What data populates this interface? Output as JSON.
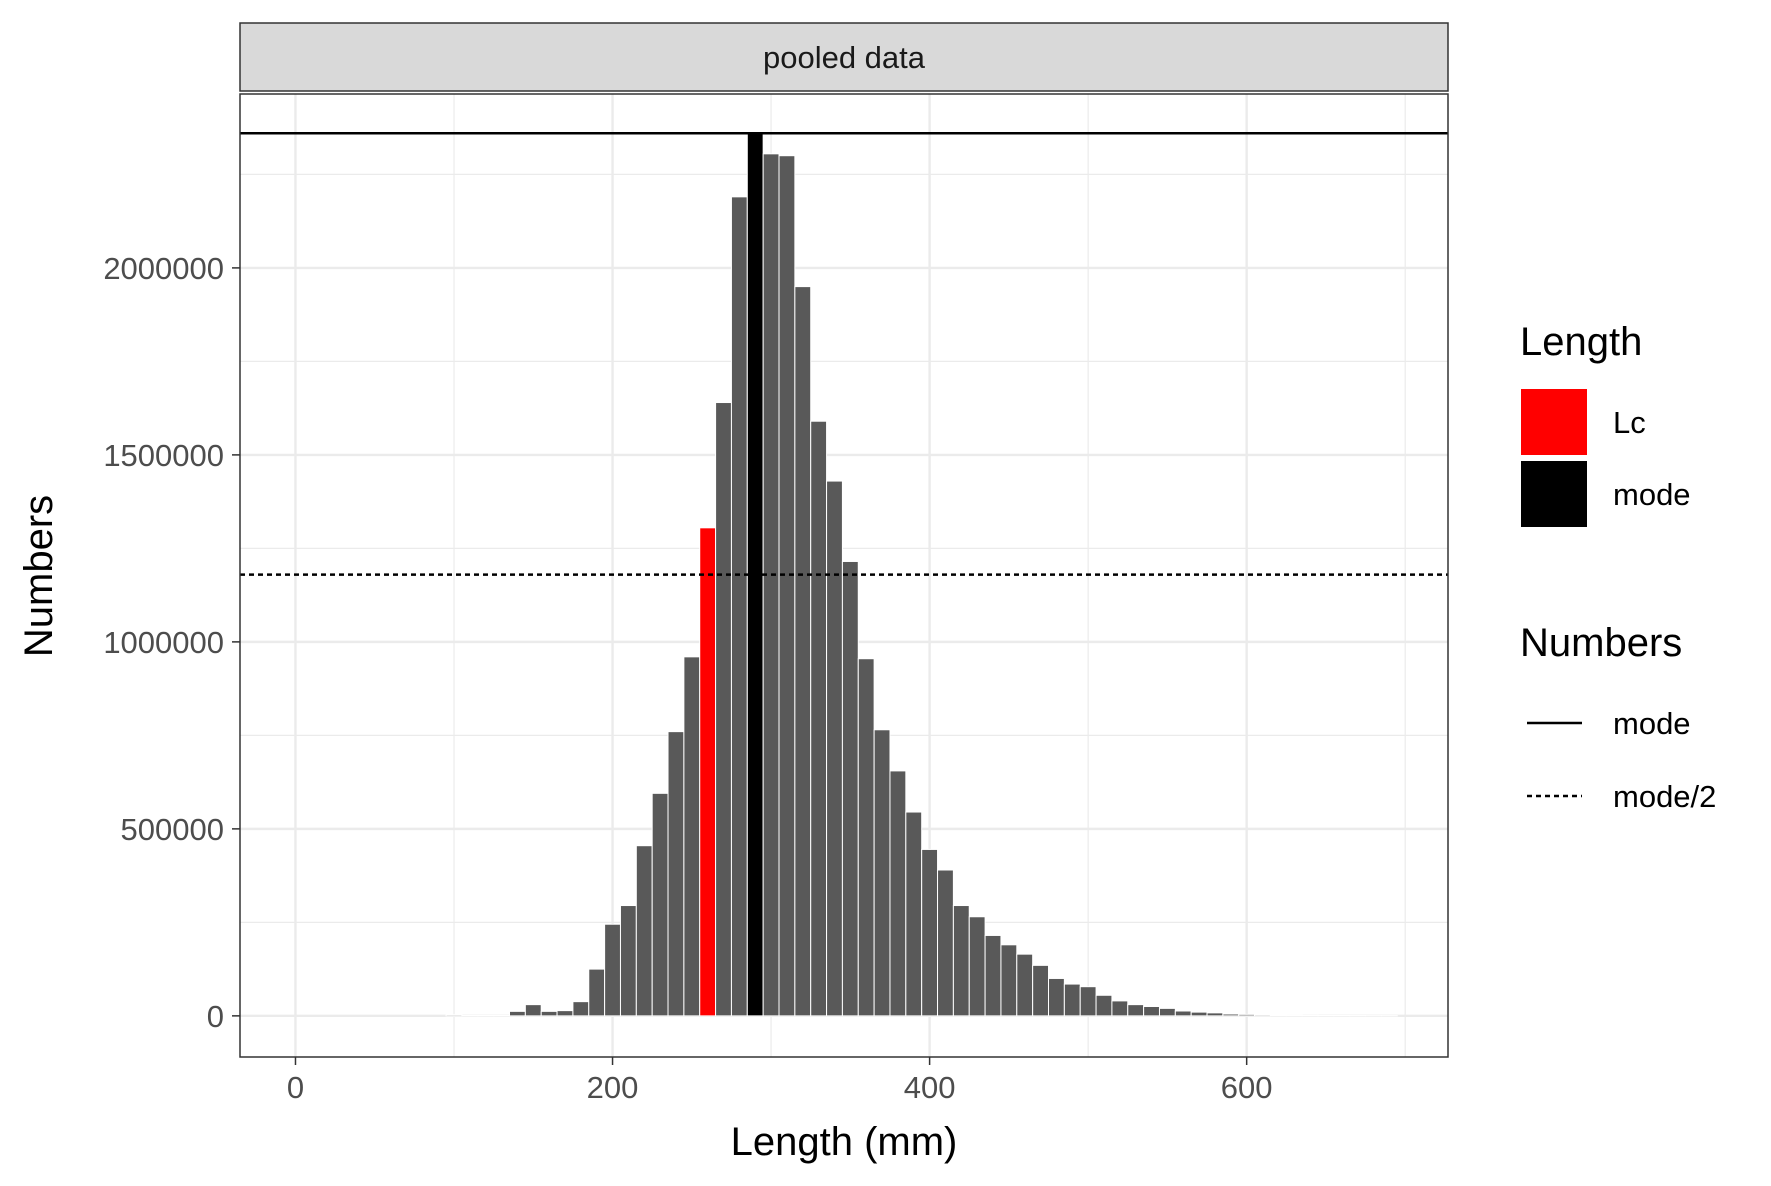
{
  "chart_data": {
    "type": "bar",
    "facet_label": "pooled data",
    "xlabel": "Length (mm)",
    "ylabel": "Numbers",
    "xlim": [
      -35,
      727
    ],
    "ylim": [
      -110000,
      2465000
    ],
    "x_ticks": [
      0,
      200,
      400,
      600
    ],
    "y_ticks": [
      0,
      500000,
      1000000,
      1500000,
      2000000
    ],
    "grid": true,
    "bin_width": 10,
    "bars": [
      {
        "x": 100,
        "y": 3000
      },
      {
        "x": 110,
        "y": 1000
      },
      {
        "x": 120,
        "y": 1000
      },
      {
        "x": 130,
        "y": 1000
      },
      {
        "x": 140,
        "y": 12000
      },
      {
        "x": 150,
        "y": 30000
      },
      {
        "x": 160,
        "y": 12000
      },
      {
        "x": 170,
        "y": 14000
      },
      {
        "x": 180,
        "y": 38000
      },
      {
        "x": 190,
        "y": 125000
      },
      {
        "x": 200,
        "y": 245000
      },
      {
        "x": 210,
        "y": 295000
      },
      {
        "x": 220,
        "y": 455000
      },
      {
        "x": 230,
        "y": 595000
      },
      {
        "x": 240,
        "y": 760000
      },
      {
        "x": 250,
        "y": 960000
      },
      {
        "x": 260,
        "y": 1305000,
        "category": "Lc"
      },
      {
        "x": 270,
        "y": 1640000
      },
      {
        "x": 280,
        "y": 2190000
      },
      {
        "x": 290,
        "y": 2360000,
        "category": "mode"
      },
      {
        "x": 300,
        "y": 2305000
      },
      {
        "x": 310,
        "y": 2300000
      },
      {
        "x": 320,
        "y": 1950000
      },
      {
        "x": 330,
        "y": 1590000
      },
      {
        "x": 340,
        "y": 1430000
      },
      {
        "x": 350,
        "y": 1215000
      },
      {
        "x": 360,
        "y": 955000
      },
      {
        "x": 370,
        "y": 765000
      },
      {
        "x": 380,
        "y": 655000
      },
      {
        "x": 390,
        "y": 545000
      },
      {
        "x": 400,
        "y": 445000
      },
      {
        "x": 410,
        "y": 390000
      },
      {
        "x": 420,
        "y": 295000
      },
      {
        "x": 430,
        "y": 265000
      },
      {
        "x": 440,
        "y": 215000
      },
      {
        "x": 450,
        "y": 190000
      },
      {
        "x": 460,
        "y": 165000
      },
      {
        "x": 470,
        "y": 135000
      },
      {
        "x": 480,
        "y": 100000
      },
      {
        "x": 490,
        "y": 85000
      },
      {
        "x": 500,
        "y": 78000
      },
      {
        "x": 510,
        "y": 55000
      },
      {
        "x": 520,
        "y": 40000
      },
      {
        "x": 530,
        "y": 30000
      },
      {
        "x": 540,
        "y": 25000
      },
      {
        "x": 550,
        "y": 20000
      },
      {
        "x": 560,
        "y": 13000
      },
      {
        "x": 570,
        "y": 10000
      },
      {
        "x": 580,
        "y": 8000
      },
      {
        "x": 590,
        "y": 5000
      },
      {
        "x": 600,
        "y": 4000
      },
      {
        "x": 610,
        "y": 3000
      },
      {
        "x": 620,
        "y": 2500
      },
      {
        "x": 630,
        "y": 2000
      },
      {
        "x": 640,
        "y": 1500
      },
      {
        "x": 650,
        "y": 1200
      },
      {
        "x": 660,
        "y": 1000
      },
      {
        "x": 670,
        "y": 800
      },
      {
        "x": 680,
        "y": 600
      },
      {
        "x": 690,
        "y": 500
      }
    ],
    "hlines": [
      {
        "name": "mode",
        "y": 2360000,
        "linetype": "solid"
      },
      {
        "name": "mode/2",
        "y": 1180000,
        "linetype": "dashed"
      }
    ],
    "legends": [
      {
        "title": "Length",
        "kind": "fill",
        "items": [
          {
            "label": "Lc",
            "color": "#ff0000"
          },
          {
            "label": "mode",
            "color": "#000000"
          }
        ]
      },
      {
        "title": "Numbers",
        "kind": "linetype",
        "items": [
          {
            "label": "mode",
            "linetype": "solid"
          },
          {
            "label": "mode/2",
            "linetype": "dashed"
          }
        ]
      }
    ],
    "legend_position": "right"
  },
  "colors": {
    "bar_default": "#595959",
    "lc": "#ff0000",
    "mode": "#000000",
    "strip_bg": "#d9d9d9",
    "grid": "#ebebeb",
    "axis_text": "#4d4d4d"
  }
}
